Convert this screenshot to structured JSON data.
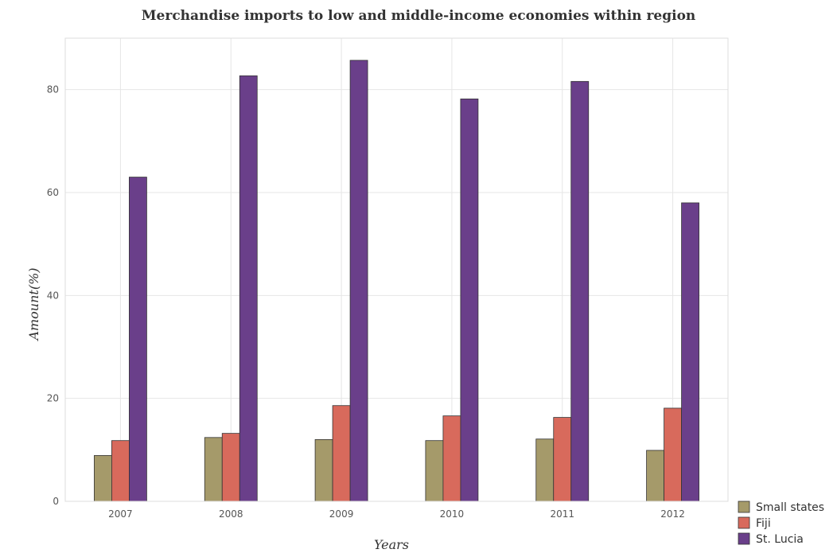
{
  "chart_data": {
    "type": "bar",
    "title": "Merchandise imports to low and middle-income economies within region",
    "xlabel": "Years",
    "ylabel": "Amount(%)",
    "categories": [
      "2007",
      "2008",
      "2009",
      "2010",
      "2011",
      "2012"
    ],
    "ylim": [
      0,
      90
    ],
    "yticks": [
      0,
      20,
      40,
      60,
      80
    ],
    "grid": true,
    "legend_position": "bottom-right",
    "series": [
      {
        "name": "Small states",
        "color": "#a59a6a",
        "values": [
          8.9,
          12.4,
          12.0,
          11.8,
          12.1,
          9.9
        ]
      },
      {
        "name": "Fiji",
        "color": "#d86a5c",
        "values": [
          11.8,
          13.2,
          18.6,
          16.6,
          16.3,
          18.1
        ]
      },
      {
        "name": "St. Lucia",
        "color": "#6a3f8a",
        "values": [
          63.0,
          82.7,
          85.7,
          78.2,
          81.6,
          58.0
        ]
      }
    ]
  }
}
